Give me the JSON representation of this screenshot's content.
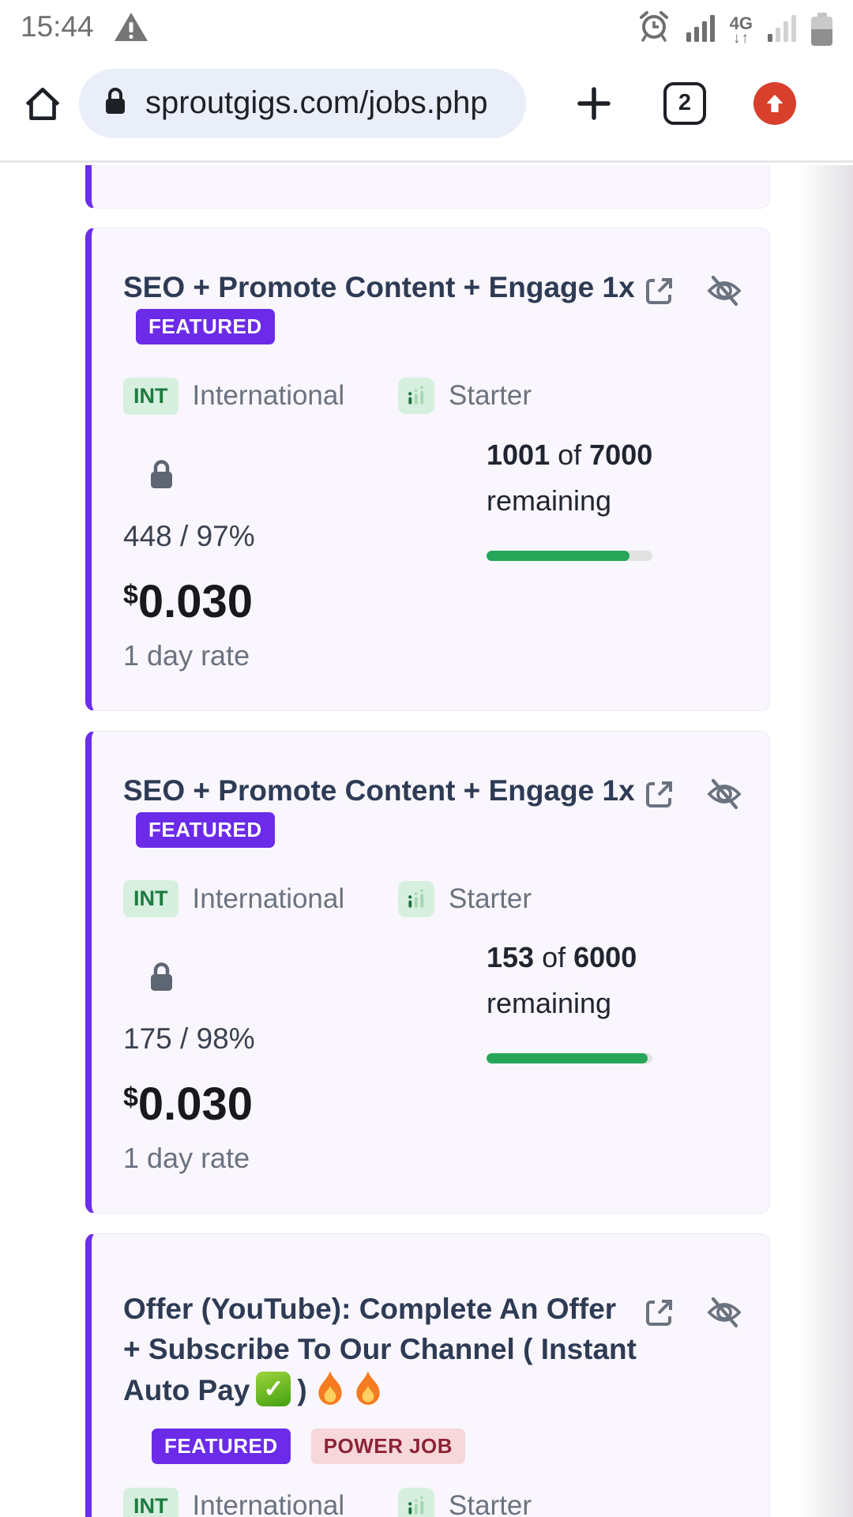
{
  "status_bar": {
    "time": "15:44",
    "network_type": "4G",
    "network_arrows": "↓↑"
  },
  "browser": {
    "url": "sproutgigs.com/jobs.php",
    "tab_count": "2",
    "new_tab_label": "+"
  },
  "cards": [
    {
      "title": "SEO + Promote Content + Engage 1x",
      "featured_badge": "FEATURED",
      "region_code": "INT",
      "region_name": "International",
      "tier_name": "Starter",
      "remaining_current": "1001",
      "remaining_of": "of",
      "remaining_total": "7000",
      "remaining_word": "remaining",
      "completed_stat": "448 / 97%",
      "progress_percent": 86,
      "currency": "$",
      "price": "0.030",
      "rate_label": "1 day rate"
    },
    {
      "title": "SEO + Promote Content + Engage 1x",
      "featured_badge": "FEATURED",
      "region_code": "INT",
      "region_name": "International",
      "tier_name": "Starter",
      "remaining_current": "153",
      "remaining_of": "of",
      "remaining_total": "6000",
      "remaining_word": "remaining",
      "completed_stat": "175 / 98%",
      "progress_percent": 97,
      "currency": "$",
      "price": "0.030",
      "rate_label": "1 day rate"
    },
    {
      "title_full": "Offer (YouTube): Complete An Offer + Subscribe To Our Channel ( Instant Auto Pay ✅) 🔥🔥",
      "title_main": "Offer (YouTube): Complete An Offer + Subscribe To Our Channel ( Instant Auto Pay",
      "title_after_check": ")",
      "featured_badge": "FEATURED",
      "power_badge": "POWER JOB",
      "region_code": "INT",
      "region_name": "International",
      "tier_name": "Starter"
    }
  ],
  "colors": {
    "accent_purple": "#6c2eea",
    "featured_badge_bg": "#6b2be9",
    "progress_green": "#27a65a",
    "region_badge_bg": "#d6efde",
    "region_badge_text": "#1e7a40",
    "power_badge_bg": "#f6d8db",
    "power_badge_text": "#8e2336",
    "title_navy": "#2e3b55",
    "update_icon_red": "#d8402c",
    "url_pill_bg": "#e9eef9"
  }
}
